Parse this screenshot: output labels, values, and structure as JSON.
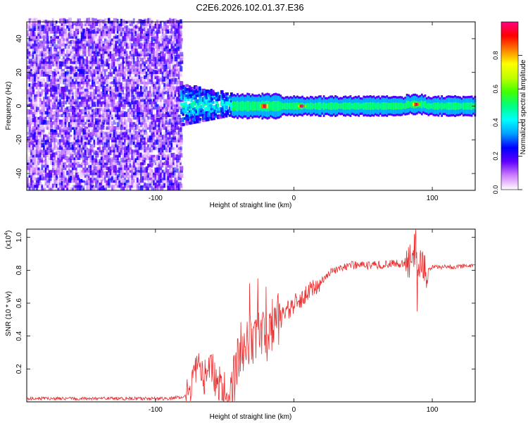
{
  "figure": {
    "title": "C2E6.2026.102.01.37.E36"
  },
  "chart_data": [
    {
      "type": "heatmap",
      "title": "C2E6.2026.102.01.37.E36",
      "xlabel": "Height of straight line (km)",
      "ylabel": "Frequency (Hz)",
      "xlim": [
        -193,
        131
      ],
      "ylim": [
        -50,
        50
      ],
      "x_ticks": [
        -100,
        0,
        100
      ],
      "y_ticks": [
        -40,
        -20,
        0,
        20,
        40
      ],
      "colorbar": {
        "label": "Normalized spectral amplitude",
        "range": [
          0,
          1
        ],
        "ticks": [
          0.0,
          0.2,
          0.4,
          0.6,
          0.8
        ],
        "colormap": [
          "#ffffff",
          "#d080ff",
          "#6000ff",
          "#0000ff",
          "#00a0ff",
          "#00ffff",
          "#00ff80",
          "#40ff00",
          "#c0ff00",
          "#ffff00",
          "#ff8000",
          "#ff0000",
          "#ff0080"
        ]
      },
      "regions": [
        {
          "name": "noise",
          "x_range": [
            -193,
            -82
          ],
          "freq_range": [
            -50,
            50
          ],
          "amplitude": [
            0.0,
            0.25
          ]
        },
        {
          "name": "onset",
          "x_range": [
            -82,
            -45
          ],
          "freq_range": [
            -12,
            12
          ],
          "amplitude": [
            0.1,
            0.45
          ]
        },
        {
          "name": "carrier",
          "x_range": [
            -45,
            131
          ],
          "freq_center": 0,
          "amplitude": [
            0.4,
            1.0
          ]
        }
      ],
      "peaks": [
        {
          "x": -22,
          "freq": 0,
          "amplitude": 0.95
        },
        {
          "x": 5,
          "freq": 0,
          "amplitude": 1.0
        },
        {
          "x": 88,
          "freq": 1,
          "amplitude": 0.95
        }
      ]
    },
    {
      "type": "line",
      "title": "",
      "xlabel": "Height of straight line (km)",
      "ylabel": "SNR (10 * v/v)",
      "y_multiplier": "(x10^4)",
      "y_multiplier_base": "(x10",
      "y_multiplier_exp": "4",
      "xlim": [
        -193,
        131
      ],
      "ylim": [
        0,
        1.05
      ],
      "x_ticks": [
        -100,
        0,
        100
      ],
      "y_ticks": [
        0.2,
        0.4,
        0.6,
        0.8,
        1.0
      ],
      "color": "#e83030",
      "series": [
        {
          "name": "SNR",
          "x": [
            -193,
            -170,
            -150,
            -130,
            -110,
            -90,
            -80,
            -75,
            -70,
            -65,
            -60,
            -55,
            -50,
            -45,
            -40,
            -35,
            -30,
            -25,
            -20,
            -15,
            -10,
            -5,
            0,
            5,
            10,
            15,
            20,
            25,
            30,
            35,
            40,
            50,
            60,
            70,
            80,
            85,
            88,
            90,
            92,
            95,
            100,
            110,
            120,
            131
          ],
          "values": [
            0.02,
            0.02,
            0.02,
            0.02,
            0.02,
            0.02,
            0.03,
            0.05,
            0.2,
            0.15,
            0.2,
            0.12,
            0.08,
            0.05,
            0.3,
            0.35,
            0.38,
            0.4,
            0.42,
            0.45,
            0.5,
            0.55,
            0.6,
            0.62,
            0.66,
            0.7,
            0.74,
            0.78,
            0.8,
            0.82,
            0.83,
            0.83,
            0.83,
            0.84,
            0.84,
            0.85,
            0.95,
            0.75,
            0.9,
            0.8,
            0.82,
            0.82,
            0.82,
            0.83
          ]
        }
      ],
      "noise_amplitude": [
        {
          "x_range": [
            -193,
            -78
          ],
          "amplitude": 0.01
        },
        {
          "x_range": [
            -78,
            -48
          ],
          "amplitude": 0.12
        },
        {
          "x_range": [
            -48,
            -10
          ],
          "amplitude": 0.18
        },
        {
          "x_range": [
            -10,
            20
          ],
          "amplitude": 0.06
        },
        {
          "x_range": [
            20,
            80
          ],
          "amplitude": 0.025
        },
        {
          "x_range": [
            80,
            97
          ],
          "amplitude": 0.12
        },
        {
          "x_range": [
            97,
            131
          ],
          "amplitude": 0.015
        }
      ],
      "spikes": [
        {
          "x": -52,
          "value": 0.01
        },
        {
          "x": -32,
          "value": 0.72
        },
        {
          "x": -26,
          "value": 0.75
        },
        {
          "x": -20,
          "value": 0.7
        },
        {
          "x": 88,
          "value": 1.05
        },
        {
          "x": 89,
          "value": 0.55
        }
      ]
    }
  ]
}
